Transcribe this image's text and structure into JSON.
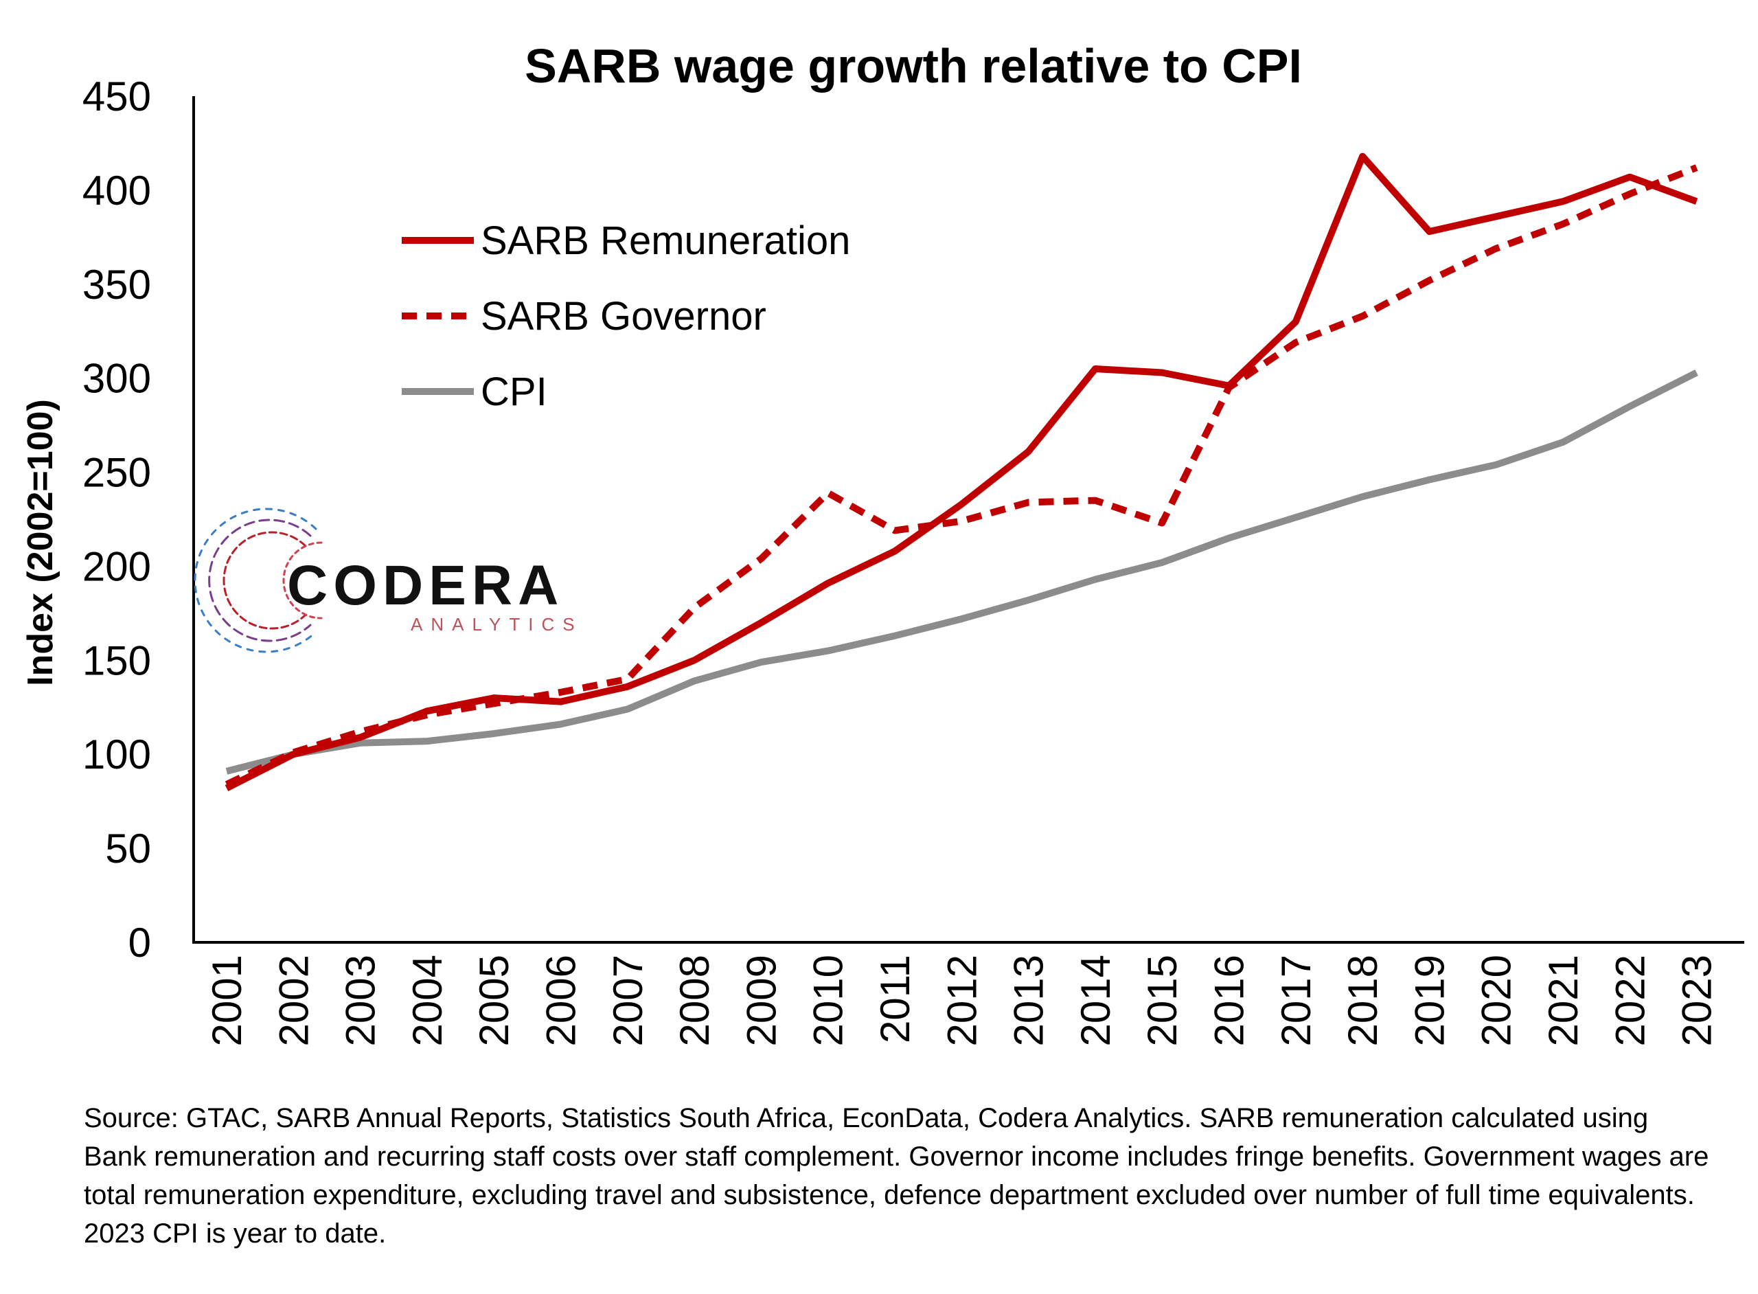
{
  "chart_data": {
    "type": "line",
    "title": "SARB wage growth relative to CPI",
    "ylabel": "Index (2002=100)",
    "xlabel": "",
    "ylim": [
      0,
      450
    ],
    "yticks": [
      0,
      50,
      100,
      150,
      200,
      250,
      300,
      350,
      400,
      450
    ],
    "categories": [
      "2001",
      "2002",
      "2003",
      "2004",
      "2005",
      "2006",
      "2007",
      "2008",
      "2009",
      "2010",
      "2011",
      "2012",
      "2013",
      "2014",
      "2015",
      "2016",
      "2017",
      "2018",
      "2019",
      "2020",
      "2021",
      "2022",
      "2023"
    ],
    "legend_position": "top-left",
    "grid": false,
    "series": [
      {
        "name": "SARB Remuneration",
        "style": "solid",
        "color": "#C00000",
        "values": [
          82,
          100,
          109,
          123,
          130,
          128,
          136,
          150,
          170,
          191,
          208,
          233,
          261,
          305,
          303,
          296,
          330,
          418,
          378,
          386,
          394,
          407,
          394
        ]
      },
      {
        "name": "SARB Governor",
        "style": "dashed",
        "color": "#C00000",
        "values": [
          84,
          101,
          112,
          121,
          127,
          133,
          140,
          178,
          204,
          239,
          219,
          224,
          234,
          235,
          223,
          295,
          319,
          333,
          352,
          369,
          382,
          398,
          412
        ]
      },
      {
        "name": "CPI",
        "style": "solid",
        "color": "#8C8C8C",
        "values": [
          91,
          100,
          106,
          107,
          111,
          116,
          124,
          139,
          149,
          155,
          163,
          172,
          182,
          193,
          202,
          215,
          226,
          237,
          246,
          254,
          266,
          285,
          303
        ]
      }
    ]
  },
  "logo": {
    "main": "CODERA",
    "sub": "ANALYTICS"
  },
  "source_note": "Source: GTAC, SARB Annual Reports, Statistics South Africa, EconData, Codera Analytics. SARB remuneration calculated using Bank remuneration and recurring staff costs over staff complement. Governor income includes fringe benefits. Government wages are total remuneration expenditure, excluding travel and subsistence, defence department excluded over number of full time equivalents. 2023 CPI is year to date."
}
